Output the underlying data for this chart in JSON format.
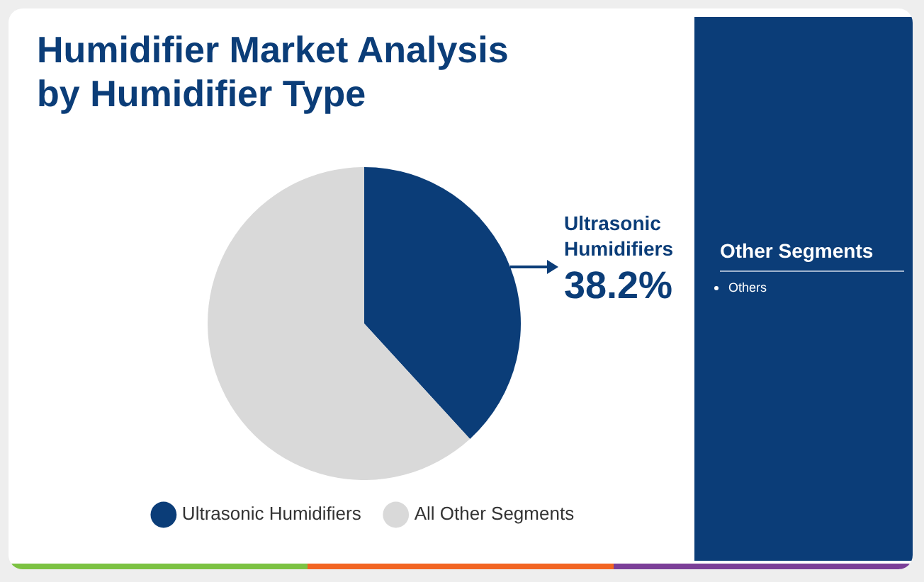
{
  "chart_data": {
    "type": "pie",
    "title": "Humidifier Market Analysis by Humidifier Type",
    "categories": [
      "Ultrasonic Humidifiers",
      "All Other Segments"
    ],
    "values": [
      38.2,
      61.8
    ],
    "colors": [
      "#0b3d78",
      "#d9d9d9"
    ],
    "value_labels": [
      "38.2%",
      null
    ],
    "legend": "bottom",
    "annotations": [
      "Other Segments",
      "Others"
    ]
  }
}
